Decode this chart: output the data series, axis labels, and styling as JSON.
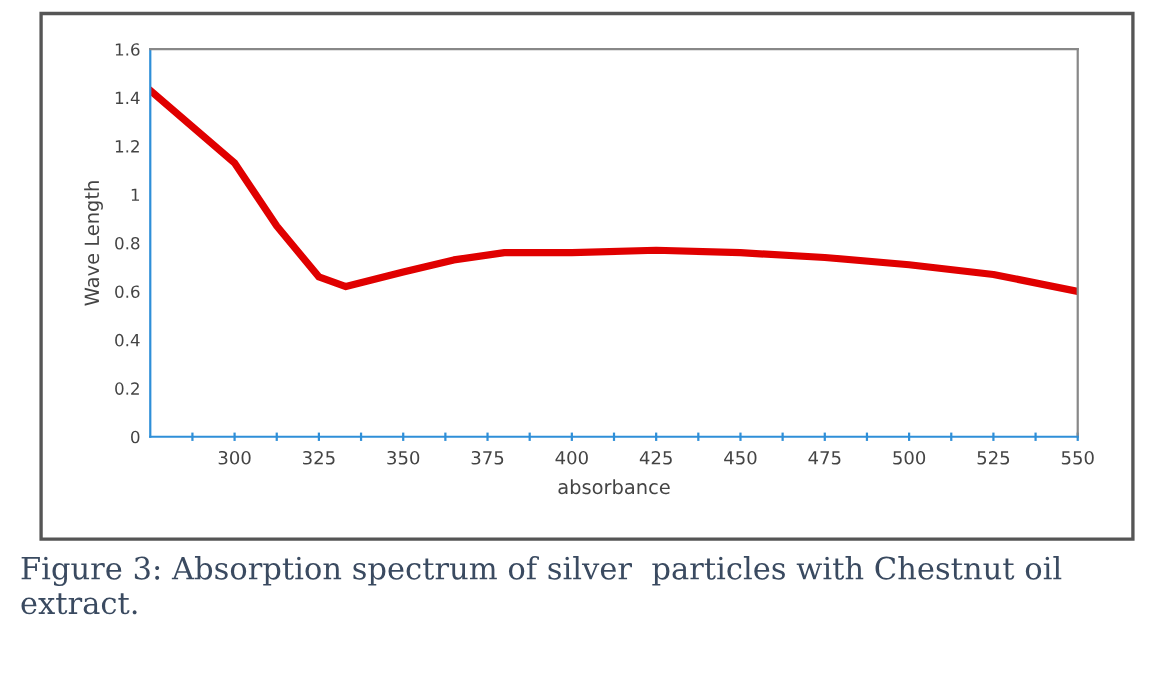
{
  "chart_data": {
    "type": "line",
    "xlabel": "absorbance",
    "ylabel": "Wave Length",
    "x": [
      275,
      287.5,
      300,
      312.5,
      325,
      333,
      350,
      365,
      380,
      400,
      425,
      450,
      475,
      500,
      525,
      550
    ],
    "series": [
      {
        "color": "#e00000",
        "values": [
          1.43,
          1.28,
          1.13,
          0.87,
          0.66,
          0.62,
          0.68,
          0.73,
          0.76,
          0.76,
          0.77,
          0.76,
          0.74,
          0.71,
          0.67,
          0.6
        ]
      }
    ],
    "xlim": [
      275,
      550
    ],
    "xticks": [
      {
        "value": 287.5,
        "label": null
      },
      300,
      {
        "value": 312.5,
        "label": null
      },
      325,
      {
        "value": 337.5,
        "label": null
      },
      350,
      {
        "value": 362.5,
        "label": null
      },
      375,
      {
        "value": 387.5,
        "label": null
      },
      400,
      {
        "value": 412.5,
        "label": null
      },
      425,
      {
        "value": 437.5,
        "label": null
      },
      450,
      {
        "value": 462.5,
        "label": null
      },
      475,
      {
        "value": 487.5,
        "label": null
      },
      500,
      {
        "value": 512.5,
        "label": null
      },
      525,
      {
        "value": 537.5,
        "label": null
      },
      550
    ],
    "ylim": [
      0,
      1.6
    ],
    "yticks": [
      0,
      0.2,
      0.4,
      0.6,
      0.8,
      1,
      1.2,
      1.4,
      1.6
    ],
    "grid": false,
    "legend": false,
    "marker": "none",
    "line_style": "solid",
    "annotations": [
      "Figure 3: Absorption spectrum of silver  particles with Chestnut oil extract."
    ]
  }
}
